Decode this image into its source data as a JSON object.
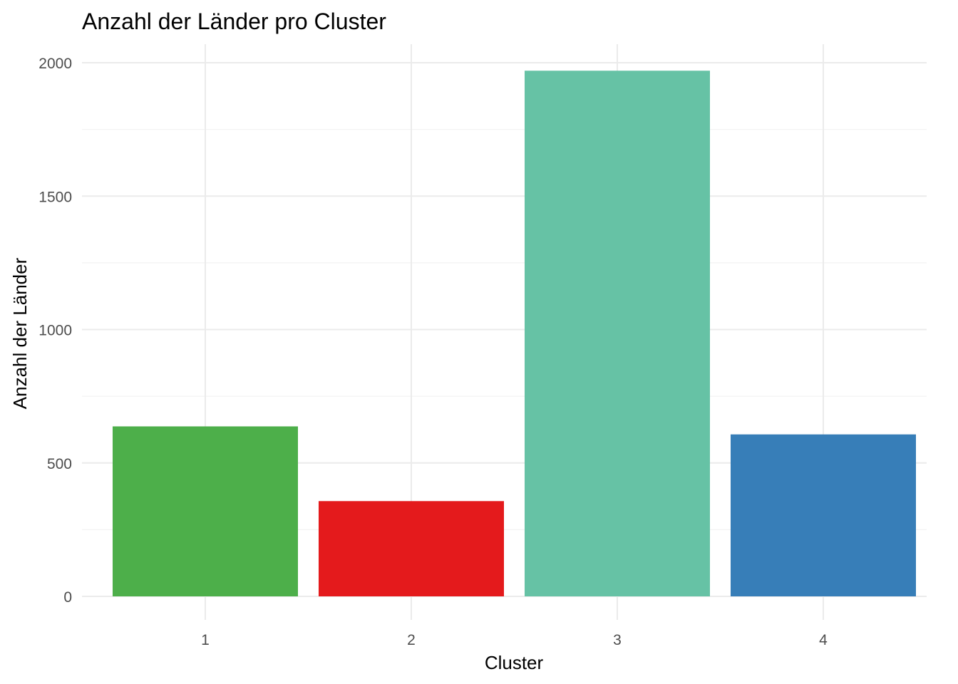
{
  "chart_data": {
    "type": "bar",
    "title": "Anzahl der Länder pro Cluster",
    "xlabel": "Cluster",
    "ylabel": "Anzahl der Länder",
    "categories": [
      "1",
      "2",
      "3",
      "4"
    ],
    "values": [
      637,
      357,
      1970,
      607
    ],
    "colors": [
      "#4DAF4A",
      "#E41A1C",
      "#66C2A5",
      "#377EB8"
    ],
    "ylim": [
      0,
      2000
    ],
    "yticks": [
      0,
      500,
      1000,
      1500,
      2000
    ],
    "grid": true,
    "legend": "none"
  }
}
